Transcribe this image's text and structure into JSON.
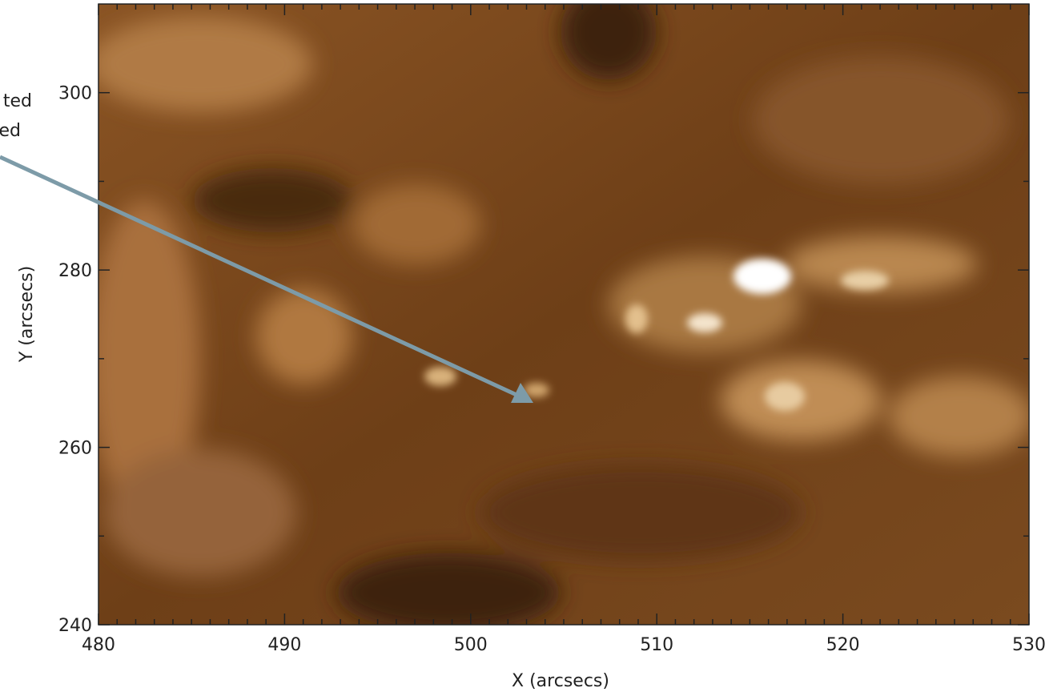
{
  "chart_data": {
    "type": "image",
    "x_label": "X (arcsecs)",
    "y_label": "Y (arcsecs)",
    "annotation": [
      "ted",
      "ed"
    ],
    "xlim": [
      480,
      530
    ],
    "ylim": [
      240,
      310
    ],
    "xticks": [
      480,
      490,
      500,
      510,
      520,
      530
    ],
    "yticks": [
      240,
      260,
      280,
      300
    ],
    "xminorticks": [
      481,
      482,
      483,
      484,
      485,
      486,
      487,
      488,
      489,
      491,
      492,
      493,
      494,
      495,
      496,
      497,
      498,
      499,
      501,
      502,
      503,
      504,
      505,
      506,
      507,
      508,
      509,
      511,
      512,
      513,
      514,
      515,
      516,
      517,
      518,
      519,
      521,
      522,
      523,
      524,
      525,
      526,
      527,
      528,
      529
    ],
    "yminorticks": [
      250,
      270,
      290
    ]
  }
}
